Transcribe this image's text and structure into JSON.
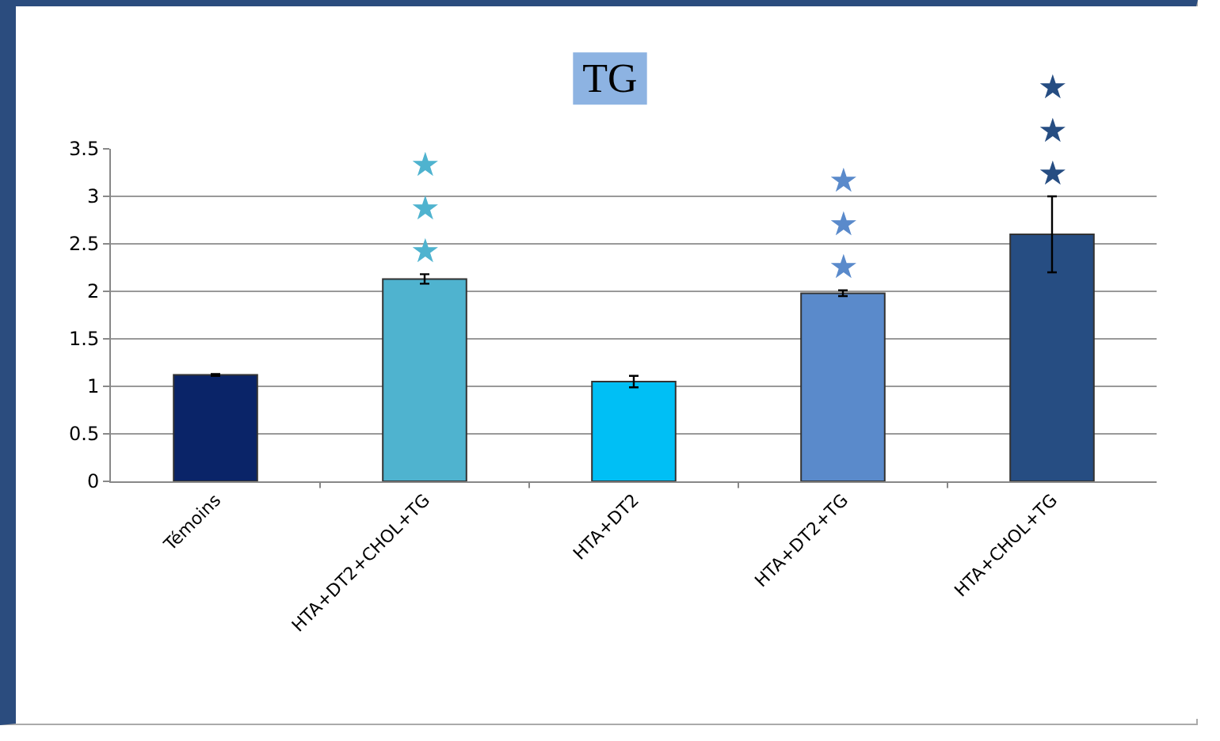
{
  "chart_data": {
    "type": "bar",
    "title": "TG",
    "categories": [
      "Témoins",
      "HTA+DT2+CHOL+TG",
      "HTA+DT2",
      "HTA+DT2+TG",
      "HTA+CHOL+TG"
    ],
    "values": [
      1.12,
      2.13,
      1.05,
      1.98,
      2.6
    ],
    "errors": [
      0.01,
      0.05,
      0.06,
      0.03,
      0.4
    ],
    "colors": [
      "#0a2468",
      "#4fb3cf",
      "#00bff5",
      "#5a8acb",
      "#264d82"
    ],
    "ylim": [
      0,
      3.5
    ],
    "yticks": [
      0,
      0.5,
      1,
      1.5,
      2,
      2.5,
      3,
      3.5
    ],
    "grid": "y",
    "annotations": [
      {
        "text": "★★★",
        "x": "HTA+DT2+CHOL+TG",
        "y": 2.18
      },
      {
        "text": "★★★",
        "x": "HTA+DT2+TG",
        "y": 2.01
      },
      {
        "text": "★★★",
        "x": "HTA+CHOL+TG",
        "y": 3.0
      }
    ]
  }
}
